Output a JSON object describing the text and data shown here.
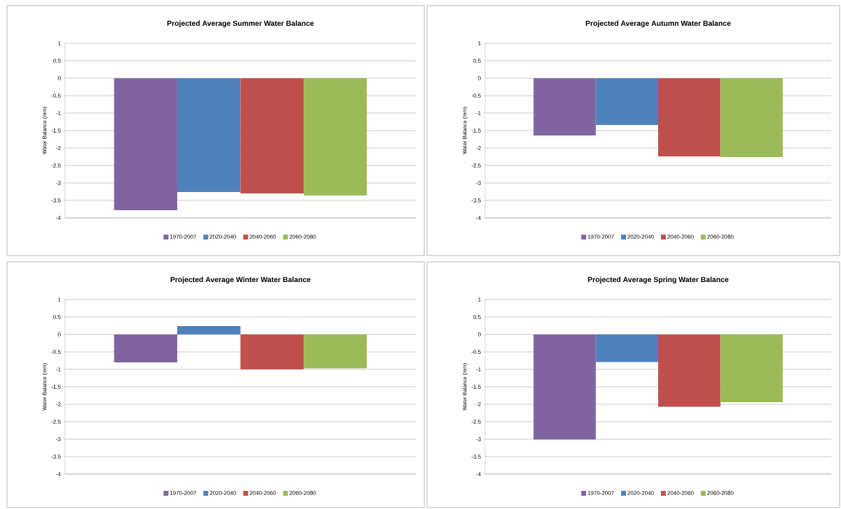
{
  "chart_data": [
    {
      "type": "bar",
      "title": "Projected Average Summer Water Balance",
      "ylabel": "Water Balance  (mm)",
      "categories": [
        null
      ],
      "ylim": [
        -4,
        1
      ],
      "yticks": [
        1,
        0.5,
        0,
        -0.5,
        -1,
        -1.5,
        -2,
        -2.5,
        -3,
        -3.5,
        -4
      ],
      "grid": "y",
      "legend": "bottom",
      "series": [
        {
          "name": "1970-2007",
          "color": "#8064a2",
          "values": [
            -3.78
          ]
        },
        {
          "name": "2020-2040",
          "color": "#4f81bd",
          "values": [
            -3.26
          ]
        },
        {
          "name": "2040-2060",
          "color": "#c0504d",
          "values": [
            -3.3
          ]
        },
        {
          "name": "2060-2080",
          "color": "#9bbb59",
          "values": [
            -3.36
          ]
        }
      ]
    },
    {
      "type": "bar",
      "title": "Projected Average Autumn Water Balance",
      "ylabel": "Water Balance  (mm)",
      "categories": [
        null
      ],
      "ylim": [
        -4,
        1
      ],
      "yticks": [
        1,
        0.5,
        0,
        -0.5,
        -1,
        -1.5,
        -2,
        -2.5,
        -3,
        -3.5,
        -4
      ],
      "grid": "y",
      "legend": "bottom",
      "series": [
        {
          "name": "1970-2007",
          "color": "#8064a2",
          "values": [
            -1.64
          ]
        },
        {
          "name": "2020-2040",
          "color": "#4f81bd",
          "values": [
            -1.34
          ]
        },
        {
          "name": "2040-2060",
          "color": "#c0504d",
          "values": [
            -2.24
          ]
        },
        {
          "name": "2060-2080",
          "color": "#9bbb59",
          "values": [
            -2.26
          ]
        }
      ]
    },
    {
      "type": "bar",
      "title": "Projected Average Winter Water Balance",
      "ylabel": "Water Balance  (mm)",
      "categories": [
        null
      ],
      "ylim": [
        -4,
        1
      ],
      "yticks": [
        1,
        0.5,
        0,
        -0.5,
        -1,
        -1.5,
        -2,
        -2.5,
        -3,
        -3.5,
        -4
      ],
      "grid": "y",
      "legend": "bottom",
      "series": [
        {
          "name": "1970-2007",
          "color": "#8064a2",
          "values": [
            -0.8
          ]
        },
        {
          "name": "2020-2040",
          "color": "#4f81bd",
          "values": [
            0.24
          ]
        },
        {
          "name": "2040-2060",
          "color": "#c0504d",
          "values": [
            -1.0
          ]
        },
        {
          "name": "2060-2080",
          "color": "#9bbb59",
          "values": [
            -0.97
          ]
        }
      ]
    },
    {
      "type": "bar",
      "title": "Projected Average Spring Water Balance",
      "ylabel": "Water Balance  (mm)",
      "categories": [
        null
      ],
      "ylim": [
        -4,
        1
      ],
      "yticks": [
        1,
        0.5,
        0,
        -0.5,
        -1,
        -1.5,
        -2,
        -2.5,
        -3,
        -3.5,
        -4
      ],
      "grid": "y",
      "legend": "bottom",
      "series": [
        {
          "name": "1970-2007",
          "color": "#8064a2",
          "values": [
            -3.01
          ]
        },
        {
          "name": "2020-2040",
          "color": "#4f81bd",
          "values": [
            -0.79
          ]
        },
        {
          "name": "2040-2060",
          "color": "#c0504d",
          "values": [
            -2.07
          ]
        },
        {
          "name": "2060-2080",
          "color": "#9bbb59",
          "values": [
            -1.94
          ]
        }
      ]
    }
  ]
}
